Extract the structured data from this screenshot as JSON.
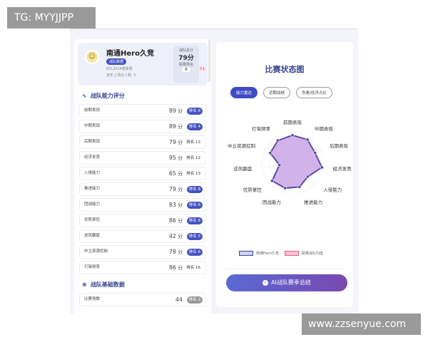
{
  "watermarks": {
    "top_left": "TG: MYYJJPP",
    "bottom_right": "www.zzsenyue.com"
  },
  "team": {
    "name": "南通Hero久竞",
    "badge": "战队数据",
    "season": "KPL2024春季赛",
    "players": "选手上场过人数: 5",
    "score_label": "战队总分",
    "score": "79分",
    "rank_label": "联赛排名",
    "rank": "6",
    "rank_change": "↑1"
  },
  "ability": {
    "title": "战队能力评分",
    "unit": "分",
    "items": [
      {
        "label": "前期表现",
        "score": 89,
        "rank": "排名 8",
        "highlight": true
      },
      {
        "label": "中期表现",
        "score": 89,
        "rank": "排名 4",
        "highlight": true
      },
      {
        "label": "后期表现",
        "score": 79,
        "rank": "排名 13",
        "highlight": false
      },
      {
        "label": "经济发育",
        "score": 95,
        "rank": "排名 12",
        "highlight": false
      },
      {
        "label": "入侵能力",
        "score": 65,
        "rank": "排名 13",
        "highlight": false
      },
      {
        "label": "推进能力",
        "score": 79,
        "rank": "排名 8",
        "highlight": true
      },
      {
        "label": "团战能力",
        "score": 83,
        "rank": "排名 6",
        "highlight": true
      },
      {
        "label": "优势掌控",
        "score": 86,
        "rank": "排名 8",
        "highlight": true
      },
      {
        "label": "逆风翻盘",
        "score": 42,
        "rank": "排名 5",
        "highlight": true
      },
      {
        "label": "中立资源控制",
        "score": 78,
        "rank": "排名 6",
        "highlight": true
      },
      {
        "label": "打架频率",
        "score": 86,
        "rank": "排名 16",
        "highlight": false
      }
    ]
  },
  "basic": {
    "title": "战队基础数据",
    "items": [
      {
        "label": "比赛场数",
        "value": "44",
        "rank": "排名 2"
      }
    ]
  },
  "chart_panel": {
    "title": "比赛状态图",
    "tabs": [
      "能力雷达",
      "近期战绩",
      "伤害/经济占比"
    ],
    "active_tab": 0,
    "ai_button": "AI战队赛季总结"
  },
  "chart_data": {
    "type": "radar",
    "axes": [
      "前期表现",
      "中期表现",
      "后期表现",
      "经济发育",
      "入侵能力",
      "推进能力",
      "团战能力",
      "优势掌控",
      "逆风翻盘",
      "中立资源控制",
      "打架频率"
    ],
    "range": [
      0,
      100
    ],
    "series": [
      {
        "name": "南通Hero久竞",
        "values": [
          89,
          89,
          79,
          95,
          65,
          79,
          83,
          86,
          42,
          78,
          86
        ],
        "color": "#5b4aa8",
        "fill": "#c9a6e6"
      }
    ],
    "legend": [
      {
        "name": "南通Hero久竞",
        "color": "#cdd4f2",
        "border": "#3a4590"
      },
      {
        "name": "联赛战队均值",
        "color": "#f8c4d4",
        "border": "#e05a86"
      }
    ],
    "legend_position": "bottom"
  }
}
